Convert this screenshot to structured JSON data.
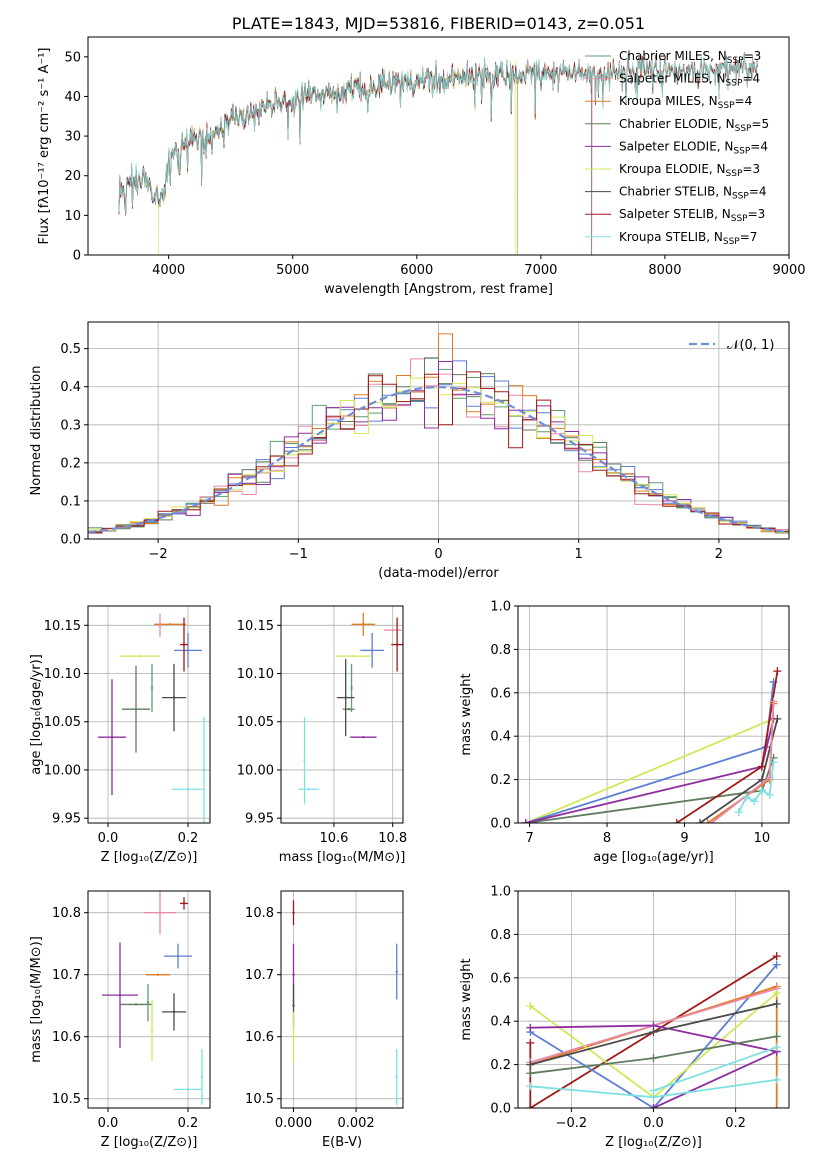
{
  "colors": {
    "Chabrier MILES": "#5e9f6e",
    "Salpeter MILES": "#e98aa8",
    "Kroupa MILES": "#e07b22",
    "Chabrier ELODIE": "#5e7d5e",
    "Salpeter ELODIE": "#8e2ea0",
    "Kroupa ELODIE": "#d0e85a",
    "Chabrier STELIB": "#4a4a4a",
    "Salpeter STELIB": "#a01a1a",
    "Kroupa STELIB": "#7fe0e0",
    "MILES_blue": "#5b7fd6",
    "norm_curve": "#6f8ed6",
    "grid": "#b0b0b0"
  },
  "chart_data": [
    {
      "id": "spectrum",
      "type": "line",
      "title": "PLATE=1843, MJD=53816, FIBERID=0143, z=0.051",
      "xlabel": "wavelength [Angstrom, rest frame]",
      "ylabel": "Flux [fλ10⁻¹⁷ erg cm⁻² s⁻¹ A⁻¹]",
      "xlim": [
        3350,
        9000
      ],
      "ylim": [
        0,
        55
      ],
      "xticks": [
        "4000",
        "5000",
        "6000",
        "7000",
        "8000",
        "9000"
      ],
      "yticks": [
        "0",
        "10",
        "20",
        "30",
        "40",
        "50"
      ],
      "grid": false,
      "legend_position": "right",
      "legend": [
        {
          "name": "Chabrier MILES",
          "nssp": "3"
        },
        {
          "name": "Salpeter MILES",
          "nssp": "4"
        },
        {
          "name": "Kroupa MILES",
          "nssp": "4"
        },
        {
          "name": "Chabrier ELODIE",
          "nssp": "5"
        },
        {
          "name": "Salpeter ELODIE",
          "nssp": "4"
        },
        {
          "name": "Kroupa ELODIE",
          "nssp": "3"
        },
        {
          "name": "Chabrier STELIB",
          "nssp": "4"
        },
        {
          "name": "Salpeter STELIB",
          "nssp": "3"
        },
        {
          "name": "Kroupa STELIB",
          "nssp": "7"
        }
      ],
      "continuum": {
        "x": [
          3600,
          3700,
          3800,
          3900,
          3950,
          4000,
          4100,
          4200,
          4300,
          4400,
          4500,
          4600,
          4700,
          4800,
          4900,
          5000,
          5100,
          5200,
          5300,
          5400,
          5500,
          5600,
          5700,
          5800,
          5900,
          6000,
          6200,
          6400,
          6600,
          6800,
          7000,
          7200,
          7400,
          7600,
          7800,
          8000,
          8200,
          8400,
          8600,
          8750
        ],
        "y": [
          17,
          18,
          19,
          15,
          14,
          24,
          27,
          30,
          28,
          31,
          35,
          35,
          36,
          38,
          39,
          39,
          41,
          40,
          42,
          41,
          42,
          42,
          43,
          43,
          44,
          44,
          44,
          45,
          45,
          45,
          46,
          46,
          46,
          46,
          47,
          47,
          46,
          47,
          47,
          47
        ]
      },
      "drops": [
        {
          "series": "Kroupa ELODIE",
          "x": 3920
        },
        {
          "series": "Kroupa ELODIE",
          "x": 6790
        },
        {
          "series": "Kroupa MILES",
          "x": 6810
        },
        {
          "series": "Salpeter STELIB",
          "x": 7410
        }
      ]
    },
    {
      "id": "residuals",
      "type": "histogram",
      "xlabel": "(data-model)/error",
      "ylabel": "Normed distribution",
      "xlim": [
        -2.5,
        2.5
      ],
      "ylim": [
        0,
        0.57
      ],
      "xticks": [
        "−2",
        "−1",
        "0",
        "1",
        "2"
      ],
      "yticks": [
        "0.0",
        "0.1",
        "0.2",
        "0.3",
        "0.4",
        "0.5"
      ],
      "grid": true,
      "legend": [
        {
          "name": "𝒩(0, 1)",
          "style": "dashed"
        }
      ],
      "legend_position": "top-right",
      "bin_width": 0.1,
      "bin_start": -2.5
    },
    {
      "id": "age_vs_Z",
      "type": "errorbar",
      "xlabel": "Z [log₁₀(Z/Z⊙)]",
      "ylabel": "age  [log₁₀(age/yr)]",
      "xlim": [
        -0.05,
        0.255
      ],
      "ylim": [
        9.945,
        10.17
      ],
      "xticks": [
        "0.0",
        "0.2"
      ],
      "yticks": [
        "9.95",
        "10.00",
        "10.05",
        "10.10",
        "10.15"
      ],
      "grid": true,
      "points": [
        {
          "series": "Kroupa ELODIE",
          "x": 0.08,
          "xerr": 0.05,
          "y": 10.118,
          "yerr": 0.0
        },
        {
          "series": "Kroupa MILES",
          "x": 0.155,
          "xerr": 0.04,
          "y": 10.151,
          "yerr": 0.0
        },
        {
          "series": "Salpeter MILES",
          "x": 0.13,
          "xerr": 0.0,
          "y": 10.15,
          "yerr": 0.012
        },
        {
          "series": "MILES_blue",
          "x": 0.2,
          "xerr": 0.035,
          "y": 10.124,
          "yerr": 0.018
        },
        {
          "series": "Salpeter STELIB",
          "x": 0.19,
          "xerr": 0.01,
          "y": 10.13,
          "yerr": 0.028
        },
        {
          "series": "Chabrier ELODIE",
          "x": 0.07,
          "xerr": 0.035,
          "y": 10.063,
          "yerr": 0.045
        },
        {
          "series": "Chabrier MILES",
          "x": 0.11,
          "xerr": 0.0,
          "y": 10.085,
          "yerr": 0.025
        },
        {
          "series": "Salpeter ELODIE",
          "x": 0.01,
          "xerr": 0.035,
          "y": 10.034,
          "yerr": 0.06
        },
        {
          "series": "Chabrier STELIB",
          "x": 0.165,
          "xerr": 0.03,
          "y": 10.075,
          "yerr": 0.035
        },
        {
          "series": "Kroupa STELIB",
          "x": 0.2,
          "xerr": 0.04,
          "y": 9.98,
          "yerr": 0.0
        },
        {
          "series": "Kroupa STELIB",
          "x": 0.24,
          "xerr": 0.0,
          "y": 10.0,
          "yerr": 0.055
        }
      ]
    },
    {
      "id": "age_vs_mass",
      "type": "errorbar",
      "xlabel": "mass [log₁₀(M/M⊙)]",
      "ylabel": "",
      "xlim": [
        10.42,
        10.835
      ],
      "ylim": [
        9.945,
        10.17
      ],
      "xticks": [
        "10.6",
        "10.8"
      ],
      "yticks": [
        "9.95",
        "10.00",
        "10.05",
        "10.10",
        "10.15"
      ],
      "grid": true,
      "points": [
        {
          "series": "Kroupa ELODIE",
          "x": 10.665,
          "xerr": 0.06,
          "y": 10.118,
          "yerr": 0.0
        },
        {
          "series": "Kroupa MILES",
          "x": 10.7,
          "xerr": 0.04,
          "y": 10.151,
          "yerr": 0.012
        },
        {
          "series": "Salpeter MILES",
          "x": 10.8,
          "xerr": 0.03,
          "y": 10.145,
          "yerr": 0.0
        },
        {
          "series": "MILES_blue",
          "x": 10.73,
          "xerr": 0.04,
          "y": 10.124,
          "yerr": 0.018
        },
        {
          "series": "Salpeter STELIB",
          "x": 10.815,
          "xerr": 0.02,
          "y": 10.13,
          "yerr": 0.028
        },
        {
          "series": "Chabrier MILES",
          "x": 10.66,
          "xerr": 0.0,
          "y": 10.085,
          "yerr": 0.025
        },
        {
          "series": "Chabrier ELODIE",
          "x": 10.65,
          "xerr": 0.02,
          "y": 10.063,
          "yerr": 0.0
        },
        {
          "series": "Chabrier STELIB",
          "x": 10.64,
          "xerr": 0.03,
          "y": 10.075,
          "yerr": 0.04
        },
        {
          "series": "Salpeter ELODIE",
          "x": 10.7,
          "xerr": 0.045,
          "y": 10.034,
          "yerr": 0.0
        },
        {
          "series": "Kroupa STELIB",
          "x": 10.515,
          "xerr": 0.035,
          "y": 9.98,
          "yerr": 0.0
        },
        {
          "series": "Kroupa STELIB",
          "x": 10.5,
          "xerr": 0.0,
          "y": 10.01,
          "yerr": 0.045
        }
      ]
    },
    {
      "id": "mass_weight_vs_age",
      "type": "line",
      "xlabel": "age  [log₁₀(age/yr)]",
      "ylabel": "mass weight",
      "xlim": [
        6.85,
        10.35
      ],
      "ylim": [
        0,
        1.0
      ],
      "xticks": [
        "7",
        "8",
        "9",
        "10"
      ],
      "yticks": [
        "0.0",
        "0.2",
        "0.4",
        "0.6",
        "0.8",
        "1.0"
      ],
      "grid": true,
      "series": [
        {
          "name": "Kroupa ELODIE",
          "x": [
            6.95,
            10.15
          ],
          "y": [
            0.0,
            0.48
          ]
        },
        {
          "name": "MILES_blue",
          "x": [
            6.95,
            10.05,
            10.15
          ],
          "y": [
            0.0,
            0.35,
            0.65
          ]
        },
        {
          "name": "Chabrier ELODIE",
          "x": [
            6.95,
            10.0,
            10.15
          ],
          "y": [
            0.0,
            0.15,
            0.3
          ]
        },
        {
          "name": "Salpeter ELODIE",
          "x": [
            6.95,
            10.0,
            10.15
          ],
          "y": [
            0.0,
            0.26,
            0.48
          ]
        },
        {
          "name": "Salpeter STELIB",
          "x": [
            8.9,
            10.0,
            10.2
          ],
          "y": [
            0.0,
            0.26,
            0.7
          ]
        },
        {
          "name": "Chabrier STELIB",
          "x": [
            9.2,
            10.0,
            10.2
          ],
          "y": [
            0.0,
            0.2,
            0.48
          ]
        },
        {
          "name": "Kroupa MILES",
          "x": [
            9.3,
            10.1,
            10.15
          ],
          "y": [
            0.0,
            0.2,
            0.55
          ]
        },
        {
          "name": "Salpeter MILES",
          "x": [
            9.35,
            10.1,
            10.15
          ],
          "y": [
            0.0,
            0.21,
            0.56
          ]
        },
        {
          "name": "Kroupa STELIB",
          "x": [
            9.7,
            9.8,
            9.9,
            10.0,
            10.1,
            10.15
          ],
          "y": [
            0.05,
            0.12,
            0.1,
            0.15,
            0.13,
            0.28
          ]
        }
      ]
    },
    {
      "id": "mass_vs_Z",
      "type": "errorbar",
      "xlabel": "Z [log₁₀(Z/Z⊙)]",
      "ylabel": "mass [log₁₀(M/M⊙)]",
      "xlim": [
        -0.05,
        0.255
      ],
      "ylim": [
        10.485,
        10.835
      ],
      "xticks": [
        "0.0",
        "0.2"
      ],
      "yticks": [
        "10.5",
        "10.6",
        "10.7",
        "10.8"
      ],
      "grid": true,
      "points": [
        {
          "series": "Salpeter STELIB",
          "x": 0.19,
          "xerr": 0.01,
          "y": 10.815,
          "yerr": 0.01
        },
        {
          "series": "Salpeter MILES",
          "x": 0.13,
          "xerr": 0.04,
          "y": 10.8,
          "yerr": 0.035
        },
        {
          "series": "MILES_blue",
          "x": 0.175,
          "xerr": 0.035,
          "y": 10.73,
          "yerr": 0.02
        },
        {
          "series": "Kroupa MILES",
          "x": 0.125,
          "xerr": 0.03,
          "y": 10.7,
          "yerr": 0.0
        },
        {
          "series": "Salpeter ELODIE",
          "x": 0.03,
          "xerr": 0.045,
          "y": 10.667,
          "yerr": 0.085
        },
        {
          "series": "Chabrier ELODIE",
          "x": 0.07,
          "xerr": 0.04,
          "y": 10.652,
          "yerr": 0.0
        },
        {
          "series": "Chabrier MILES",
          "x": 0.1,
          "xerr": 0.0,
          "y": 10.655,
          "yerr": 0.03
        },
        {
          "series": "Chabrier STELIB",
          "x": 0.165,
          "xerr": 0.03,
          "y": 10.64,
          "yerr": 0.03
        },
        {
          "series": "Kroupa ELODIE",
          "x": 0.11,
          "xerr": 0.0,
          "y": 10.61,
          "yerr": 0.05
        },
        {
          "series": "Kroupa STELIB",
          "x": 0.2,
          "xerr": 0.035,
          "y": 10.515,
          "yerr": 0.0
        },
        {
          "series": "Kroupa STELIB",
          "x": 0.235,
          "xerr": 0.0,
          "y": 10.535,
          "yerr": 0.045
        }
      ]
    },
    {
      "id": "mass_vs_ebv",
      "type": "errorbar",
      "xlabel": "E(B-V)",
      "ylabel": "",
      "xlim": [
        -0.0004,
        0.0035
      ],
      "ylim": [
        10.485,
        10.835
      ],
      "xticks": [
        "0.000",
        "0.002"
      ],
      "yticks": [
        "10.5",
        "10.6",
        "10.7",
        "10.8"
      ],
      "grid": true,
      "points": [
        {
          "series": "Salpeter STELIB",
          "x": 0.0,
          "xerr": 0.0,
          "y": 10.8,
          "yerr": 0.02
        },
        {
          "series": "Salpeter ELODIE",
          "x": 0.0,
          "xerr": 0.0,
          "y": 10.7,
          "yerr": 0.05
        },
        {
          "series": "Chabrier STELIB",
          "x": 0.0,
          "xerr": 0.0,
          "y": 10.65,
          "yerr": 0.035
        },
        {
          "series": "Kroupa ELODIE",
          "x": 0.0,
          "xerr": 0.0,
          "y": 10.6,
          "yerr": 0.04
        },
        {
          "series": "MILES_blue",
          "x": 0.0033,
          "xerr": 0.0,
          "y": 10.705,
          "yerr": 0.045
        },
        {
          "series": "Kroupa STELIB",
          "x": 0.0033,
          "xerr": 0.0,
          "y": 10.535,
          "yerr": 0.045
        }
      ]
    },
    {
      "id": "mass_weight_vs_Z",
      "type": "line",
      "xlabel": "Z [log₁₀(Z/Z⊙)]",
      "ylabel": "mass weight",
      "xlim": [
        -0.33,
        0.33
      ],
      "ylim": [
        0,
        1.0
      ],
      "xticks": [
        "−0.2",
        "0.0",
        "0.2"
      ],
      "yticks": [
        "0.0",
        "0.2",
        "0.4",
        "0.6",
        "0.8",
        "1.0"
      ],
      "grid": true,
      "series": [
        {
          "name": "Salpeter STELIB",
          "x": [
            -0.3,
            -0.3,
            0.3
          ],
          "y": [
            0.3,
            0.0,
            0.7
          ]
        },
        {
          "name": "MILES_blue",
          "x": [
            -0.3,
            0.0,
            0.3
          ],
          "y": [
            0.35,
            0.0,
            0.66
          ]
        },
        {
          "name": "Kroupa MILES",
          "x": [
            -0.3,
            0.3,
            0.3
          ],
          "y": [
            0.2,
            0.56,
            0.0
          ]
        },
        {
          "name": "Salpeter MILES",
          "x": [
            -0.3,
            0.3
          ],
          "y": [
            0.21,
            0.55
          ]
        },
        {
          "name": "Kroupa ELODIE",
          "x": [
            -0.3,
            0.0,
            0.3
          ],
          "y": [
            0.47,
            0.05,
            0.53
          ]
        },
        {
          "name": "Salpeter ELODIE",
          "x": [
            -0.3,
            0.0,
            0.3
          ],
          "y": [
            0.37,
            0.38,
            0.26
          ]
        },
        {
          "name": "Chabrier STELIB",
          "x": [
            -0.3,
            0.0,
            0.3
          ],
          "y": [
            0.2,
            0.35,
            0.48
          ]
        },
        {
          "name": "Chabrier ELODIE",
          "x": [
            -0.3,
            0.0,
            0.3
          ],
          "y": [
            0.16,
            0.23,
            0.33
          ]
        },
        {
          "name": "Salpeter ELODIE",
          "x": [
            0.0,
            0.3
          ],
          "y": [
            0.0,
            0.26
          ]
        },
        {
          "name": "Kroupa STELIB",
          "x": [
            -0.3,
            0.0,
            0.3
          ],
          "y": [
            0.1,
            0.05,
            0.13
          ]
        },
        {
          "name": "Kroupa STELIB",
          "x": [
            0.0,
            0.3
          ],
          "y": [
            0.08,
            0.28
          ]
        }
      ]
    }
  ]
}
